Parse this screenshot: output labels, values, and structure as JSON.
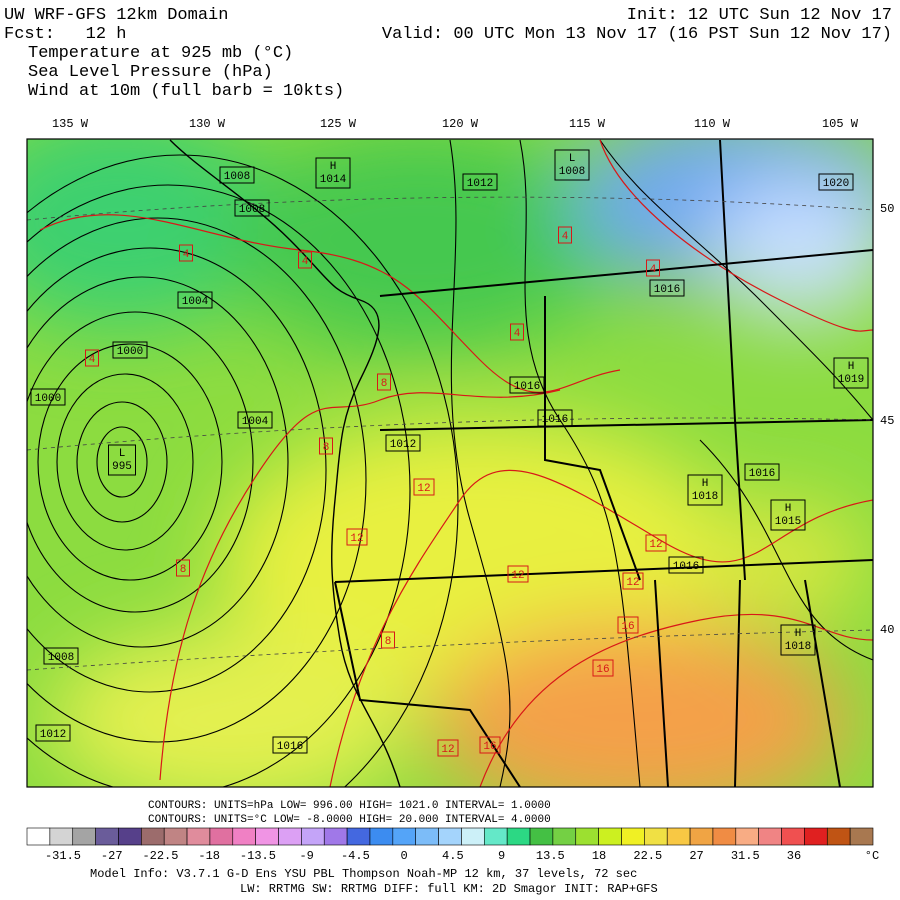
{
  "header": {
    "domain": "UW WRF-GFS 12km Domain",
    "forecast": "Fcst:   12 h",
    "init": "Init: 12 UTC Sun 12 Nov 17",
    "valid": "Valid: 00 UTC Mon 13 Nov 17 (16 PST Sun 12 Nov 17)",
    "fields": [
      "Temperature at 925 mb (°C)",
      "Sea Level Pressure (hPa)",
      "Wind at 10m (full barb = 10kts)"
    ]
  },
  "map": {
    "longitude_labels": [
      "135 W",
      "130 W",
      "125 W",
      "120 W",
      "115 W",
      "110 W",
      "105 W"
    ],
    "latitude_labels": [
      "50",
      "45",
      "40"
    ],
    "pressure_labels": [
      {
        "text": "1008"
      },
      {
        "center": "H",
        "text": "1014"
      },
      {
        "text": "1012"
      },
      {
        "center": "L",
        "text": "1008"
      },
      {
        "text": "1020"
      },
      {
        "text": "1008"
      },
      {
        "text": "1004"
      },
      {
        "text": "1016"
      },
      {
        "text": "1000"
      },
      {
        "text": "1000"
      },
      {
        "center": "L",
        "text": "995"
      },
      {
        "text": "1004"
      },
      {
        "text": "1016"
      },
      {
        "text": "1016"
      },
      {
        "text": "1012"
      },
      {
        "center": "H",
        "text": "1019"
      },
      {
        "text": "1016"
      },
      {
        "center": "H",
        "text": "1018"
      },
      {
        "center": "H",
        "text": "1015"
      },
      {
        "text": "1016"
      },
      {
        "center": "H",
        "text": "1018"
      },
      {
        "text": "1008"
      },
      {
        "text": "1012"
      },
      {
        "text": "1016"
      }
    ],
    "temperature_labels": [
      "4",
      "4",
      "4",
      "4",
      "4",
      "4",
      "8",
      "8",
      "8",
      "8",
      "12",
      "12",
      "12",
      "12",
      "12",
      "12",
      "16",
      "16",
      "16"
    ]
  },
  "contour_info": [
    "CONTOURS:  UNITS=hPa  LOW=   996.00      HIGH=  1021.0      INTERVAL=    1.0000",
    "CONTOURS:  UNITS=°C  LOW=  -8.0000    HIGH=  20.000      INTERVAL=    4.0000"
  ],
  "colorbar": {
    "colors": [
      "#ffffff",
      "#d4d4d4",
      "#a4a4a4",
      "#6a5c9a",
      "#56408a",
      "#9c6c6c",
      "#c08484",
      "#e08c9c",
      "#e070a0",
      "#f080c4",
      "#f094e4",
      "#dca0f4",
      "#c4a4f8",
      "#a078e8",
      "#4468e0",
      "#3c8cf0",
      "#54a4f8",
      "#7cbcf8",
      "#a4d4fc",
      "#ccf0f8",
      "#64e8c8",
      "#2cd884",
      "#44c044",
      "#74d044",
      "#9ce030",
      "#ccf020",
      "#f0f024",
      "#f0e044",
      "#f8c844",
      "#f0a444",
      "#f08c44",
      "#f8ac84",
      "#f08484",
      "#f05050",
      "#e02020",
      "#c05414",
      "#a87850"
    ],
    "labels": [
      "-31.5",
      "-27",
      "-22.5",
      "-18",
      "-13.5",
      "-9",
      "-4.5",
      "0",
      "4.5",
      "9",
      "13.5",
      "18",
      "22.5",
      "27",
      "31.5",
      "36"
    ],
    "unit": "°C"
  },
  "footer": [
    "Model Info: V3.7.1    G-D Ens YSU PBL  Thompson    Noah-MP  12 km,   37 levels,   72 sec",
    "LW: RRTMG SW: RRTMG    DIFF: full    KM: 2D Smagor INIT: RAP+GFS"
  ]
}
